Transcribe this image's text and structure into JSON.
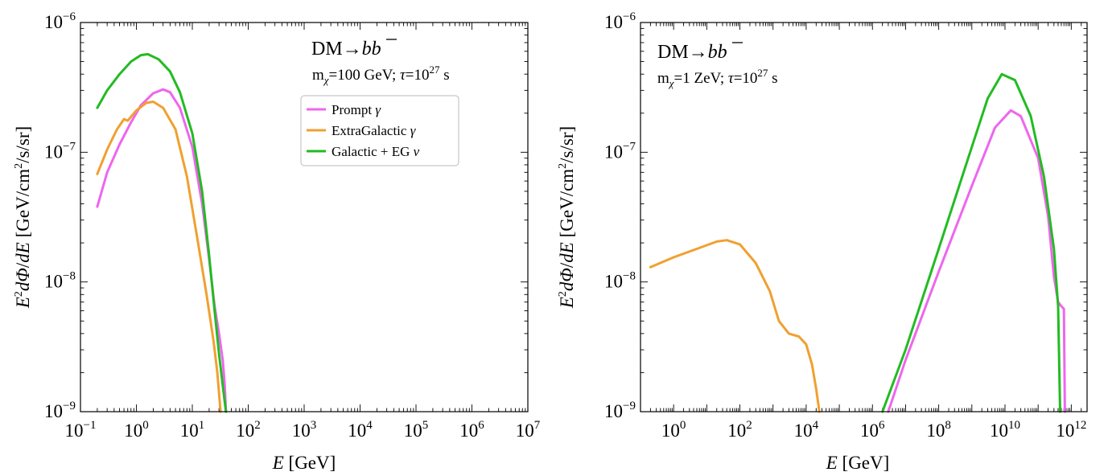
{
  "chart_data": [
    {
      "type": "line",
      "xscale": "log",
      "yscale": "log",
      "xlim": [
        0.1,
        10000000
      ],
      "ylim": [
        1e-09,
        1e-06
      ],
      "xlabel": {
        "main": "E",
        "unit": "[GeV]"
      },
      "ylabel": {
        "main": "E²dΦ/dE",
        "unit": "[GeV/cm²/s/sr]"
      },
      "x_ticks": [
        {
          "base": "10",
          "exp": "−1",
          "value": 0.1
        },
        {
          "base": "10",
          "exp": "0",
          "value": 1
        },
        {
          "base": "10",
          "exp": "1",
          "value": 10
        },
        {
          "base": "10",
          "exp": "2",
          "value": 100
        },
        {
          "base": "10",
          "exp": "3",
          "value": 1000
        },
        {
          "base": "10",
          "exp": "4",
          "value": 10000
        },
        {
          "base": "10",
          "exp": "5",
          "value": 100000
        },
        {
          "base": "10",
          "exp": "6",
          "value": 1000000
        },
        {
          "base": "10",
          "exp": "7",
          "value": 10000000
        }
      ],
      "y_ticks": [
        {
          "base": "10",
          "exp": "−9",
          "value": 1e-09
        },
        {
          "base": "10",
          "exp": "−8",
          "value": 1e-08
        },
        {
          "base": "10",
          "exp": "−7",
          "value": 1e-07
        },
        {
          "base": "10",
          "exp": "−6",
          "value": 1e-06
        }
      ],
      "annotation": {
        "channel": "DM→b b̄",
        "params": "m_χ=100 GeV; τ=10^27 s",
        "params_parts": {
          "m": "m",
          "chi": "χ",
          "mass": "=100 GeV; ",
          "tau": "τ",
          "eq": "=10",
          "exp": "27",
          "unit": " s"
        }
      },
      "legend": {
        "placement": "upper-right"
      },
      "series": [
        {
          "name": "Prompt γ",
          "name_parts": {
            "text": "Prompt ",
            "sym": "γ"
          },
          "color": "#ee66ee",
          "points": [
            [
              0.2,
              3.8e-08
            ],
            [
              0.3,
              7e-08
            ],
            [
              0.5,
              1.15e-07
            ],
            [
              0.8,
              1.7e-07
            ],
            [
              1.2,
              2.3e-07
            ],
            [
              2.0,
              2.85e-07
            ],
            [
              3.0,
              3.05e-07
            ],
            [
              4.0,
              2.9e-07
            ],
            [
              6.0,
              2.2e-07
            ],
            [
              10,
              1.1e-07
            ],
            [
              15,
              4e-08
            ],
            [
              20,
              1.5e-08
            ],
            [
              25,
              6.5e-09
            ],
            [
              30,
              4e-09
            ],
            [
              35,
              2.5e-09
            ],
            [
              38,
              1.6e-09
            ],
            [
              40,
              1e-09
            ]
          ]
        },
        {
          "name": "ExtraGalactic γ",
          "name_parts": {
            "text": "ExtraGalactic ",
            "sym": "γ"
          },
          "color": "#f0a030",
          "points": [
            [
              0.2,
              6.8e-08
            ],
            [
              0.3,
              1.05e-07
            ],
            [
              0.45,
              1.5e-07
            ],
            [
              0.6,
              1.8e-07
            ],
            [
              0.7,
              1.75e-07
            ],
            [
              1.0,
              2.1e-07
            ],
            [
              1.5,
              2.4e-07
            ],
            [
              2.0,
              2.45e-07
            ],
            [
              3.0,
              2.2e-07
            ],
            [
              5.0,
              1.5e-07
            ],
            [
              8.0,
              6.5e-08
            ],
            [
              12,
              2.3e-08
            ],
            [
              18,
              8e-09
            ],
            [
              24,
              3.5e-09
            ],
            [
              28,
              2e-09
            ],
            [
              32,
              1e-09
            ]
          ]
        },
        {
          "name": "Galactic + EG ν",
          "name_parts": {
            "text": "Galactic + EG ",
            "sym": "ν"
          },
          "color": "#22bb22",
          "points": [
            [
              0.2,
              2.2e-07
            ],
            [
              0.3,
              3e-07
            ],
            [
              0.5,
              4e-07
            ],
            [
              0.8,
              5e-07
            ],
            [
              1.2,
              5.6e-07
            ],
            [
              1.6,
              5.7e-07
            ],
            [
              2.5,
              5.2e-07
            ],
            [
              4.0,
              4.2e-07
            ],
            [
              6.0,
              2.9e-07
            ],
            [
              10,
              1.4e-07
            ],
            [
              15,
              5e-08
            ],
            [
              20,
              1.6e-08
            ],
            [
              25,
              6e-09
            ],
            [
              30,
              2.8e-09
            ],
            [
              35,
              1.6e-09
            ],
            [
              40,
              1e-09
            ]
          ]
        }
      ]
    },
    {
      "type": "line",
      "xscale": "log",
      "yscale": "log",
      "xlim": [
        0.1,
        3000000000000.0
      ],
      "ylim": [
        1e-09,
        1e-06
      ],
      "xlabel": {
        "main": "E",
        "unit": "[GeV]"
      },
      "ylabel": {
        "main": "E²dΦ/dE",
        "unit": "[GeV/cm²/s/sr]"
      },
      "x_ticks": [
        {
          "base": "10",
          "exp": "0",
          "value": 1
        },
        {
          "base": "10",
          "exp": "2",
          "value": 100
        },
        {
          "base": "10",
          "exp": "4",
          "value": 10000
        },
        {
          "base": "10",
          "exp": "6",
          "value": 1000000
        },
        {
          "base": "10",
          "exp": "8",
          "value": 100000000
        },
        {
          "base": "10",
          "exp": "10",
          "value": 10000000000
        },
        {
          "base": "10",
          "exp": "12",
          "value": 1000000000000
        }
      ],
      "y_ticks": [
        {
          "base": "10",
          "exp": "−9",
          "value": 1e-09
        },
        {
          "base": "10",
          "exp": "−8",
          "value": 1e-08
        },
        {
          "base": "10",
          "exp": "−7",
          "value": 1e-07
        },
        {
          "base": "10",
          "exp": "−6",
          "value": 1e-06
        }
      ],
      "annotation": {
        "channel": "DM→b b̄",
        "params": "m_χ=1 ZeV; τ=10^27 s",
        "params_parts": {
          "m": "m",
          "chi": "χ",
          "mass": "=1 ZeV; ",
          "tau": "τ",
          "eq": "=10",
          "exp": "27",
          "unit": " s"
        }
      },
      "series": [
        {
          "name": "ExtraGalactic γ",
          "color": "#f0a030",
          "points": [
            [
              0.2,
              1.3e-08
            ],
            [
              1,
              1.55e-08
            ],
            [
              5,
              1.8e-08
            ],
            [
              20,
              2.05e-08
            ],
            [
              40,
              2.1e-08
            ],
            [
              100,
              1.95e-08
            ],
            [
              300,
              1.4e-08
            ],
            [
              800,
              8.5e-09
            ],
            [
              1500,
              5e-09
            ],
            [
              3000,
              4e-09
            ],
            [
              6000,
              3.8e-09
            ],
            [
              10000,
              3.3e-09
            ],
            [
              15000,
              2.3e-09
            ],
            [
              20000,
              1.5e-09
            ],
            [
              25000,
              1e-09
            ]
          ]
        },
        {
          "name": "Prompt γ",
          "color": "#ee66ee",
          "points": [
            [
              3000000.0,
              1e-09
            ],
            [
              10000000.0,
              2.5e-09
            ],
            [
              100000000.0,
              1.2e-08
            ],
            [
              1000000000.0,
              5.5e-08
            ],
            [
              5000000000.0,
              1.55e-07
            ],
            [
              15000000000.0,
              2.1e-07
            ],
            [
              30000000000.0,
              1.9e-07
            ],
            [
              100000000000.0,
              9e-08
            ],
            [
              200000000000.0,
              3.2e-08
            ],
            [
              300000000000.0,
              1.1e-08
            ],
            [
              400000000000.0,
              7e-09
            ],
            [
              500000000000.0,
              6.5e-09
            ],
            [
              600000000000.0,
              6.2e-09
            ],
            [
              640000000000.0,
              1e-09
            ]
          ]
        },
        {
          "name": "Galactic + EG ν",
          "color": "#22bb22",
          "points": [
            [
              2000000.0,
              1e-09
            ],
            [
              10000000.0,
              3e-09
            ],
            [
              100000000.0,
              1.8e-08
            ],
            [
              1000000000.0,
              1.1e-07
            ],
            [
              3000000000.0,
              2.6e-07
            ],
            [
              8000000000.0,
              4e-07
            ],
            [
              20000000000.0,
              3.6e-07
            ],
            [
              60000000000.0,
              1.9e-07
            ],
            [
              150000000000.0,
              6.5e-08
            ],
            [
              300000000000.0,
              1.8e-08
            ],
            [
              400000000000.0,
              6.5e-09
            ],
            [
              460000000000.0,
              1e-09
            ]
          ]
        }
      ]
    }
  ]
}
